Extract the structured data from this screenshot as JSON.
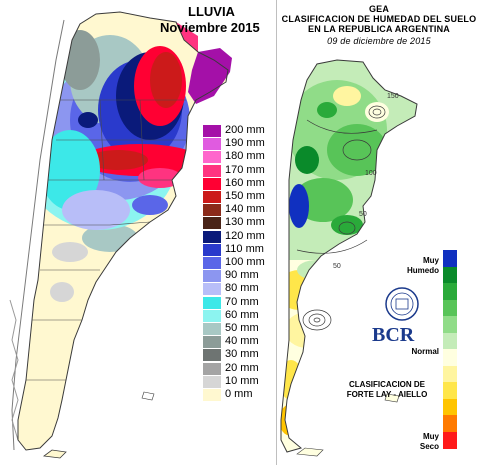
{
  "rainfall_map": {
    "title": "LLUVIA",
    "subtitle": "Noviembre 2015",
    "legend_items": [
      {
        "label": "200 mm",
        "color": "#a410a8"
      },
      {
        "label": "190 mm",
        "color": "#e05be0"
      },
      {
        "label": "180 mm",
        "color": "#ff66cc"
      },
      {
        "label": "170 mm",
        "color": "#ff3380"
      },
      {
        "label": "160 mm",
        "color": "#ff0033"
      },
      {
        "label": "150 mm",
        "color": "#cc1a1a"
      },
      {
        "label": "140 mm",
        "color": "#8b2a1a"
      },
      {
        "label": "130 mm",
        "color": "#4a2418"
      },
      {
        "label": "120 mm",
        "color": "#0a1a7a"
      },
      {
        "label": "110 mm",
        "color": "#2a3acc"
      },
      {
        "label": "100 mm",
        "color": "#5a66e8"
      },
      {
        "label": "90 mm",
        "color": "#8c96f0"
      },
      {
        "label": "80 mm",
        "color": "#b8bef8"
      },
      {
        "label": "70 mm",
        "color": "#3ce8e8"
      },
      {
        "label": "60 mm",
        "color": "#8cf4f0"
      },
      {
        "label": "50 mm",
        "color": "#a8c8c4"
      },
      {
        "label": "40 mm",
        "color": "#8c9c98"
      },
      {
        "label": "30 mm",
        "color": "#6e7472"
      },
      {
        "label": "20 mm",
        "color": "#a4a4a4"
      },
      {
        "label": "10 mm",
        "color": "#d6d6d6"
      },
      {
        "label": "0 mm",
        "color": "#fff8d0"
      }
    ]
  },
  "soil_moisture_map": {
    "title_lines": [
      "GEA",
      "CLASIFICACION DE HUMEDAD DEL SUELO",
      "EN LA REPUBLICA ARGENTINA"
    ],
    "date": "09 de diciembre de 2015",
    "scale_colors": [
      "#1030c0",
      "#0a8a2a",
      "#2aaa3a",
      "#58c458",
      "#90dc88",
      "#c4ecb8",
      "#ffffe0",
      "#fff5a0",
      "#ffe64a",
      "#ffc400",
      "#ff7a00",
      "#ff1a1a"
    ],
    "scale_labels": {
      "top": "Muy\nHumedo",
      "middle": "Normal",
      "bottom": "Muy\nSeco"
    },
    "logo_text": "BCR",
    "classification_lines": [
      "CLASIFICACION DE",
      "FORTE LAY - AIELLO"
    ],
    "contour_labels": [
      "150",
      "100",
      "50",
      "50"
    ]
  }
}
